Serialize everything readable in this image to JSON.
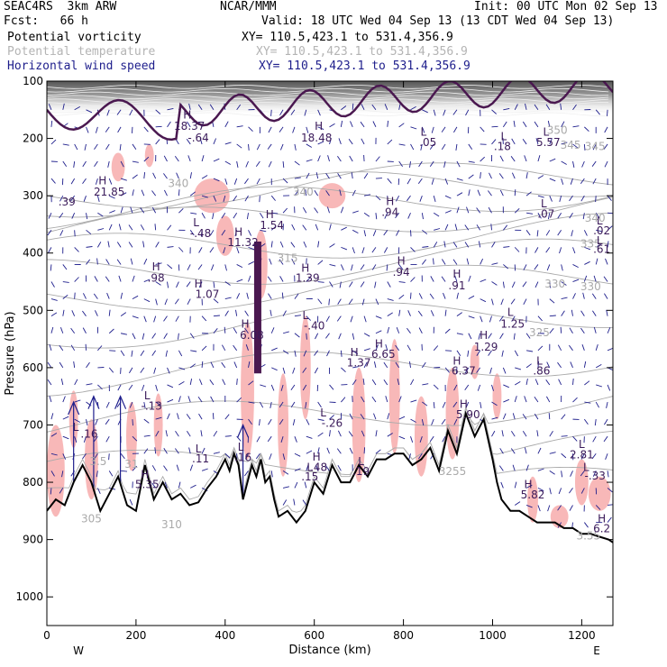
{
  "header": {
    "line1_left": "SEAC4RS  3km ARW",
    "line1_center": "NCAR/MMM",
    "line1_right": "Init: 00 UTC Mon 02 Sep 13",
    "line2_left": "Fcst:   66 h",
    "line2_right": "Valid: 18 UTC Wed 04 Sep 13 (13 CDT Wed 04 Sep 13)"
  },
  "fields": [
    {
      "name": "Potential vorticity",
      "xy": "XY= 110.5,423.1 to 531.4,356.9",
      "color": "#000000"
    },
    {
      "name": "Potential temperature",
      "xy": "XY= 110.5,423.1 to 531.4,356.9",
      "color": "#b4b4b4"
    },
    {
      "name": "Horizontal wind speed",
      "xy": "XY= 110.5,423.1 to 531.4,356.9",
      "color": "#1e1e8c"
    }
  ],
  "colors": {
    "shading": "#f8b8b8",
    "pv_contour": "#4a1850",
    "theta": "#aaaaaa",
    "wind": "#1e1e8c",
    "terrain": "#000000",
    "hl_label": "#3a1a5a"
  },
  "chart_data": {
    "type": "cross-section",
    "xlabel": "Distance (km)",
    "ylabel": "Pressure (hPa)",
    "xlim": [
      0,
      1270
    ],
    "ylim": [
      1050,
      100
    ],
    "x_ticks": [
      0,
      200,
      400,
      600,
      800,
      1000,
      1200
    ],
    "y_ticks": [
      100,
      200,
      300,
      400,
      500,
      600,
      700,
      800,
      900,
      1000
    ],
    "endpoints": {
      "left": "W",
      "right": "E"
    },
    "terrain": {
      "x": [
        0,
        20,
        40,
        60,
        80,
        100,
        120,
        140,
        160,
        180,
        200,
        220,
        240,
        260,
        280,
        300,
        320,
        340,
        360,
        380,
        400,
        410,
        420,
        430,
        440,
        450,
        460,
        470,
        480,
        490,
        500,
        510,
        520,
        540,
        560,
        580,
        600,
        620,
        640,
        660,
        680,
        700,
        720,
        740,
        760,
        780,
        800,
        820,
        840,
        860,
        880,
        900,
        920,
        940,
        960,
        980,
        1000,
        1010,
        1020,
        1040,
        1060,
        1080,
        1100,
        1120,
        1140,
        1160,
        1180,
        1200,
        1220,
        1240,
        1260,
        1270
      ],
      "p": [
        850,
        830,
        840,
        800,
        770,
        800,
        850,
        820,
        790,
        840,
        850,
        770,
        830,
        800,
        830,
        820,
        840,
        835,
        810,
        790,
        760,
        780,
        750,
        770,
        830,
        800,
        770,
        790,
        760,
        800,
        790,
        830,
        860,
        850,
        870,
        850,
        800,
        820,
        770,
        800,
        800,
        770,
        790,
        760,
        760,
        750,
        750,
        770,
        760,
        740,
        780,
        710,
        750,
        680,
        720,
        690,
        760,
        800,
        830,
        850,
        850,
        860,
        870,
        870,
        870,
        880,
        880,
        890,
        890,
        895,
        900,
        905
      ]
    },
    "pv_labels": [
      {
        "t": "H",
        "x": 315,
        "p": 165
      },
      {
        "t": "18.37",
        "x": 320,
        "p": 185
      },
      {
        "t": "-.64",
        "x": 340,
        "p": 205
      },
      {
        "t": "H",
        "x": 610,
        "p": 185
      },
      {
        "t": "18.48",
        "x": 605,
        "p": 205
      },
      {
        "t": "L",
        "x": 845,
        "p": 195
      },
      {
        "t": ".05",
        "x": 855,
        "p": 213
      },
      {
        "t": "L",
        "x": 1025,
        "p": 203
      },
      {
        "t": ".18",
        "x": 1022,
        "p": 220
      },
      {
        "t": "L",
        "x": 1120,
        "p": 195
      },
      {
        "t": "5.57",
        "x": 1125,
        "p": 213
      },
      {
        "t": "H",
        "x": 125,
        "p": 280
      },
      {
        "t": "21.85",
        "x": 140,
        "p": 300
      },
      {
        "t": ".39",
        "x": 45,
        "p": 317
      },
      {
        "t": "H",
        "x": 770,
        "p": 316
      },
      {
        "t": ".94",
        "x": 770,
        "p": 335
      },
      {
        "t": "L",
        "x": 1115,
        "p": 320
      },
      {
        "t": ".07",
        "x": 1120,
        "p": 338
      },
      {
        "t": "H",
        "x": 500,
        "p": 339
      },
      {
        "t": "1.54",
        "x": 505,
        "p": 358
      },
      {
        "t": "L",
        "x": 335,
        "p": 353
      },
      {
        "t": "-.48",
        "x": 345,
        "p": 372
      },
      {
        "t": "L",
        "x": 1240,
        "p": 350
      },
      {
        "t": ".02",
        "x": 1245,
        "p": 367
      },
      {
        "t": "H",
        "x": 430,
        "p": 370
      },
      {
        "t": "11.32",
        "x": 440,
        "p": 388
      },
      {
        "t": "L",
        "x": 1240,
        "p": 385
      },
      {
        "t": ".61",
        "x": 1245,
        "p": 400
      },
      {
        "t": "H",
        "x": 795,
        "p": 420
      },
      {
        "t": ".94",
        "x": 795,
        "p": 440
      },
      {
        "t": "H",
        "x": 245,
        "p": 430
      },
      {
        "t": ".98",
        "x": 245,
        "p": 450
      },
      {
        "t": "H",
        "x": 580,
        "p": 433
      },
      {
        "t": "1.39",
        "x": 585,
        "p": 450
      },
      {
        "t": "H",
        "x": 920,
        "p": 443
      },
      {
        "t": ".91",
        "x": 920,
        "p": 463
      },
      {
        "t": "H",
        "x": 340,
        "p": 460
      },
      {
        "t": "1.07",
        "x": 360,
        "p": 478
      },
      {
        "t": "L",
        "x": 1040,
        "p": 510
      },
      {
        "t": "1.25",
        "x": 1045,
        "p": 530
      },
      {
        "t": "L",
        "x": 580,
        "p": 515
      },
      {
        "t": "-.40",
        "x": 600,
        "p": 533
      },
      {
        "t": "H",
        "x": 445,
        "p": 530
      },
      {
        "t": "6.08",
        "x": 460,
        "p": 550
      },
      {
        "t": "H",
        "x": 980,
        "p": 550
      },
      {
        "t": "1.29",
        "x": 985,
        "p": 570
      },
      {
        "t": "H",
        "x": 745,
        "p": 565
      },
      {
        "t": "6.65",
        "x": 755,
        "p": 583
      },
      {
        "t": "H",
        "x": 690,
        "p": 580
      },
      {
        "t": "1.37",
        "x": 700,
        "p": 598
      },
      {
        "t": "H",
        "x": 920,
        "p": 595
      },
      {
        "t": "6.37",
        "x": 935,
        "p": 612
      },
      {
        "t": "L",
        "x": 1105,
        "p": 595
      },
      {
        "t": ".86",
        "x": 1110,
        "p": 612
      },
      {
        "t": "L",
        "x": 225,
        "p": 655
      },
      {
        "t": "-.13",
        "x": 235,
        "p": 673
      },
      {
        "t": "H",
        "x": 935,
        "p": 670
      },
      {
        "t": "5.90",
        "x": 945,
        "p": 688
      },
      {
        "t": "L",
        "x": 620,
        "p": 685
      },
      {
        "t": "-.26",
        "x": 640,
        "p": 703
      },
      {
        "t": "L",
        "x": 65,
        "p": 710
      },
      {
        "t": ".16",
        "x": 95,
        "p": 722
      },
      {
        "t": "L",
        "x": 1200,
        "p": 740
      },
      {
        "t": "2.81",
        "x": 1200,
        "p": 758
      },
      {
        "t": "L",
        "x": 340,
        "p": 748
      },
      {
        "t": ".11",
        "x": 345,
        "p": 765
      },
      {
        "t": "L",
        "x": 435,
        "p": 745
      },
      {
        "t": ".16",
        "x": 440,
        "p": 763
      },
      {
        "t": "H",
        "x": 605,
        "p": 762
      },
      {
        "t": ".48",
        "x": 610,
        "p": 780
      },
      {
        "t": "L",
        "x": 705,
        "p": 770
      },
      {
        "t": ".19",
        "x": 705,
        "p": 787
      },
      {
        "t": "L",
        "x": 1210,
        "p": 780
      },
      {
        "t": "-.33",
        "x": 1230,
        "p": 795
      },
      {
        "t": "L",
        "x": 590,
        "p": 780
      },
      {
        "t": ".15",
        "x": 590,
        "p": 797
      },
      {
        "t": "H",
        "x": 220,
        "p": 793
      },
      {
        "t": "5.35",
        "x": 225,
        "p": 810
      },
      {
        "t": "H",
        "x": 1080,
        "p": 810
      },
      {
        "t": "5.82",
        "x": 1090,
        "p": 828
      },
      {
        "t": "H",
        "x": 1245,
        "p": 870
      },
      {
        "t": "6.2",
        "x": 1245,
        "p": 887
      }
    ],
    "theta_labels": [
      {
        "t": "340",
        "x": 295,
        "p": 285
      },
      {
        "t": "340",
        "x": 575,
        "p": 300
      },
      {
        "t": "345",
        "x": 1175,
        "p": 218
      },
      {
        "t": "350",
        "x": 1145,
        "p": 192
      },
      {
        "t": "345",
        "x": 1230,
        "p": 220
      },
      {
        "t": "340",
        "x": 1230,
        "p": 345
      },
      {
        "t": "335",
        "x": 1220,
        "p": 390
      },
      {
        "t": "330",
        "x": 1140,
        "p": 460
      },
      {
        "t": "330",
        "x": 1220,
        "p": 465
      },
      {
        "t": "325",
        "x": 1105,
        "p": 545
      },
      {
        "t": "315",
        "x": 540,
        "p": 415
      },
      {
        "t": "310",
        "x": 280,
        "p": 880
      },
      {
        "t": "305",
        "x": 100,
        "p": 870
      },
      {
        "t": "3.5",
        "x": 115,
        "p": 770
      },
      {
        "t": "31",
        "x": 190,
        "p": 775
      },
      {
        "t": "3255",
        "x": 910,
        "p": 787
      },
      {
        "t": "3.55",
        "x": 1215,
        "p": 900
      }
    ]
  }
}
